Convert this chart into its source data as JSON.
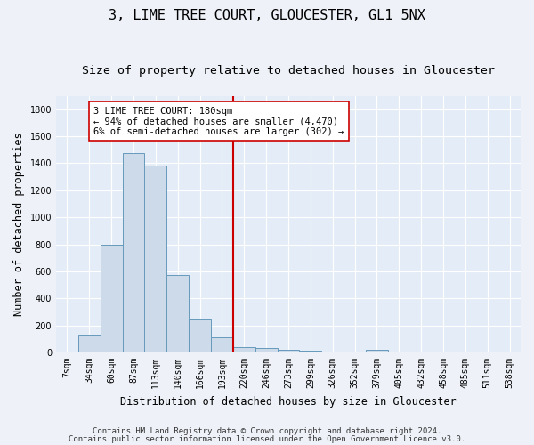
{
  "title": "3, LIME TREE COURT, GLOUCESTER, GL1 5NX",
  "subtitle": "Size of property relative to detached houses in Gloucester",
  "xlabel": "Distribution of detached houses by size in Gloucester",
  "ylabel": "Number of detached properties",
  "bin_labels": [
    "7sqm",
    "34sqm",
    "60sqm",
    "87sqm",
    "113sqm",
    "140sqm",
    "166sqm",
    "193sqm",
    "220sqm",
    "246sqm",
    "273sqm",
    "299sqm",
    "326sqm",
    "352sqm",
    "379sqm",
    "405sqm",
    "432sqm",
    "458sqm",
    "485sqm",
    "511sqm",
    "538sqm"
  ],
  "bar_heights": [
    10,
    130,
    795,
    1475,
    1385,
    570,
    250,
    115,
    38,
    30,
    22,
    15,
    0,
    0,
    20,
    0,
    0,
    0,
    0,
    0,
    0
  ],
  "bar_color": "#ccdaea",
  "bar_edge_color": "#6699bb",
  "vline_x": 7.5,
  "vline_color": "#cc0000",
  "annotation_text": "3 LIME TREE COURT: 180sqm\n← 94% of detached houses are smaller (4,470)\n6% of semi-detached houses are larger (302) →",
  "annotation_box_color": "#ffffff",
  "annotation_border_color": "#cc0000",
  "ylim": [
    0,
    1900
  ],
  "yticks": [
    0,
    200,
    400,
    600,
    800,
    1000,
    1200,
    1400,
    1600,
    1800
  ],
  "footer_line1": "Contains HM Land Registry data © Crown copyright and database right 2024.",
  "footer_line2": "Contains public sector information licensed under the Open Government Licence v3.0.",
  "bg_color": "#eef2f8",
  "plot_bg_color": "#e4ecf7",
  "grid_color": "#ffffff",
  "title_fontsize": 11,
  "subtitle_fontsize": 9.5,
  "axis_label_fontsize": 8.5,
  "tick_fontsize": 7,
  "annotation_fontsize": 7.5,
  "footer_fontsize": 6.5
}
